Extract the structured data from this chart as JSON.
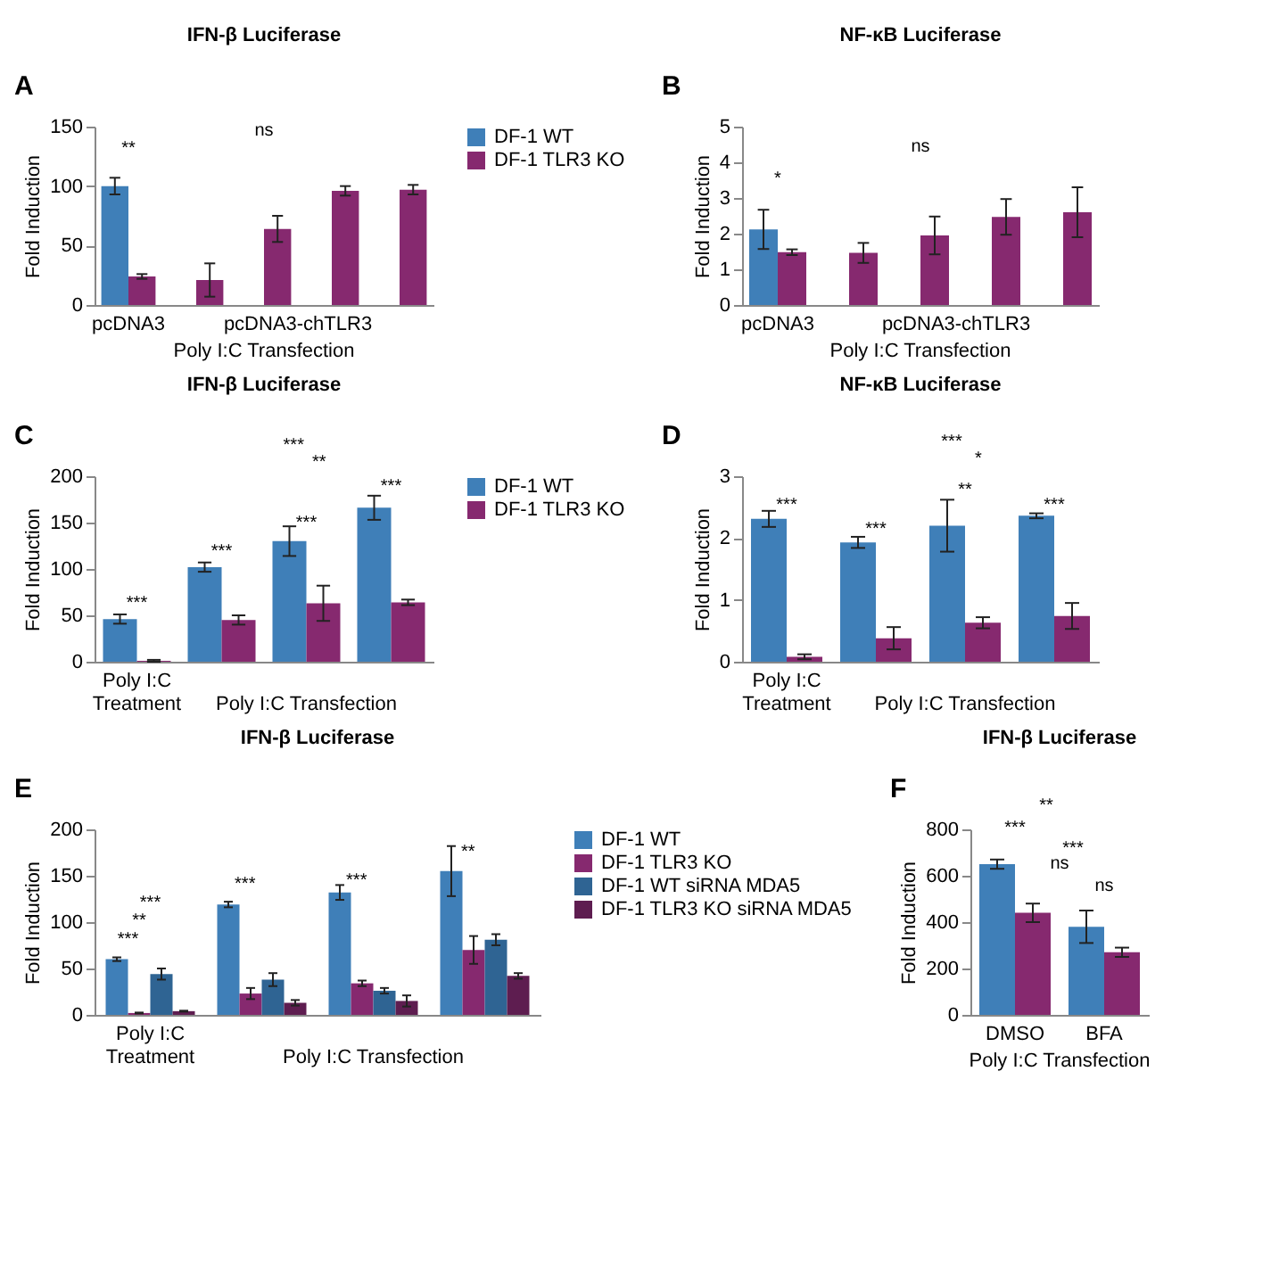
{
  "chart_data": [
    {
      "type": "bar",
      "title": "IFN-β Luciferase",
      "ylabel": "Fold Induction",
      "xlabel": "Poly I:C Transfection",
      "categories": [
        null,
        null,
        null,
        null,
        null
      ],
      "ylim": [
        0,
        150
      ],
      "yticks": [
        0,
        50,
        100,
        150
      ],
      "legend": "right",
      "series": [
        {
          "name": "DF-1 WT",
          "color": "#3f7fb8",
          "values": [
            100,
            null,
            null,
            null,
            null
          ],
          "errors": [
            7,
            null,
            null,
            null,
            null
          ]
        },
        {
          "name": "DF-1 TLR3 KO",
          "color": "#86296f",
          "values": [
            24,
            21,
            64,
            96,
            97
          ],
          "errors": [
            2,
            14,
            11,
            4,
            4
          ]
        }
      ],
      "annotations": [
        "A",
        "**",
        "ns",
        "pcDNA3",
        "pcDNA3-chTLR3"
      ]
    },
    {
      "type": "bar",
      "title": "NF-κB Luciferase",
      "ylabel": "Fold Induction",
      "xlabel": "Poly I:C Transfection",
      "categories": [
        null,
        null,
        null,
        null,
        null
      ],
      "ylim": [
        0,
        5
      ],
      "yticks": [
        0,
        1,
        2,
        3,
        4,
        5
      ],
      "series": [
        {
          "color": "#3f7fb8",
          "values": [
            2.12,
            null,
            null,
            null,
            null
          ],
          "errors": [
            0.55,
            null,
            null,
            null,
            null
          ]
        },
        {
          "color": "#86296f",
          "values": [
            1.48,
            1.46,
            1.95,
            2.47,
            2.6
          ],
          "errors": [
            0.08,
            0.28,
            0.53,
            0.5,
            0.7
          ]
        }
      ],
      "annotations": [
        "B",
        "*",
        "ns",
        "pcDNA3",
        "pcDNA3-chTLR3"
      ]
    },
    {
      "type": "bar",
      "title": "IFN-β Luciferase",
      "ylabel": "Fold Induction",
      "categories": [
        null,
        null,
        null,
        null
      ],
      "ylim": [
        0,
        200
      ],
      "yticks": [
        0,
        50,
        100,
        150,
        200
      ],
      "legend": "right",
      "series": [
        {
          "name": "DF-1 WT",
          "color": "#3f7fb8",
          "values": [
            46,
            102,
            130,
            166
          ],
          "errors": [
            5,
            5,
            16,
            13
          ]
        },
        {
          "name": "DF-1 TLR3 KO",
          "color": "#86296f",
          "values": [
            1,
            45,
            63,
            64
          ],
          "errors": [
            1,
            5,
            19,
            3
          ]
        }
      ],
      "annotations": [
        "C",
        "***",
        "***",
        "***",
        "***",
        "***",
        "**",
        "Poly I:C\nTreatment",
        "Poly I:C Transfection"
      ]
    },
    {
      "type": "bar",
      "title": "NF-κB Luciferase",
      "ylabel": "Fold Induction",
      "categories": [
        null,
        null,
        null,
        null
      ],
      "ylim": [
        0,
        3
      ],
      "yticks": [
        0,
        1,
        2,
        3
      ],
      "series": [
        {
          "color": "#3f7fb8",
          "values": [
            2.31,
            1.93,
            2.2,
            2.36
          ],
          "errors": [
            0.13,
            0.09,
            0.42,
            0.04
          ]
        },
        {
          "color": "#86296f",
          "values": [
            0.08,
            0.38,
            0.63,
            0.74
          ],
          "errors": [
            0.04,
            0.18,
            0.09,
            0.21
          ]
        }
      ],
      "annotations": [
        "D",
        "***",
        "***",
        "**",
        "***",
        "***",
        "*",
        "Poly I:C\nTreatment",
        "Poly I:C Transfection"
      ]
    },
    {
      "type": "bar",
      "title": "IFN-β Luciferase",
      "ylabel": "Fold Induction",
      "categories": [
        null,
        null,
        null,
        null
      ],
      "ylim": [
        0,
        200
      ],
      "yticks": [
        0,
        50,
        100,
        150,
        200
      ],
      "legend": "right",
      "series": [
        {
          "name": "DF-1 WT",
          "color": "#3f7fb8",
          "values": [
            60,
            119,
            132,
            155
          ],
          "errors": [
            2,
            3,
            8,
            27
          ]
        },
        {
          "name": "DF-1 TLR3 KO",
          "color": "#86296f",
          "values": [
            2,
            23,
            34,
            70
          ],
          "errors": [
            0.5,
            6,
            3,
            15
          ]
        },
        {
          "name": "DF-1 WT siRNA MDA5",
          "color": "#2f6493",
          "values": [
            44,
            38,
            26,
            81
          ],
          "errors": [
            6,
            7,
            3,
            6
          ]
        },
        {
          "name": "DF-1 TLR3 KO siRNA MDA5",
          "color": "#5e1d50",
          "values": [
            4,
            13,
            15,
            42
          ],
          "errors": [
            0.5,
            3,
            6,
            3
          ]
        }
      ],
      "annotations": [
        "E",
        "***",
        "**",
        "***",
        "***",
        "***",
        "**",
        "Poly I:C\nTreatment",
        "Poly I:C Transfection"
      ]
    },
    {
      "type": "bar",
      "title": "IFN-β Luciferase",
      "ylabel": "Fold Induction",
      "xlabel": "Poly I:C Transfection",
      "categories": [
        "DMSO",
        "BFA"
      ],
      "ylim": [
        0,
        800
      ],
      "yticks": [
        0,
        200,
        400,
        600,
        800
      ],
      "series": [
        {
          "color": "#3f7fb8",
          "values": [
            650,
            380
          ],
          "errors": [
            20,
            70
          ]
        },
        {
          "color": "#86296f",
          "values": [
            440,
            270
          ],
          "errors": [
            40,
            20
          ]
        }
      ],
      "annotations": [
        "F",
        "**",
        "***",
        "***",
        "ns",
        "ns"
      ]
    }
  ]
}
